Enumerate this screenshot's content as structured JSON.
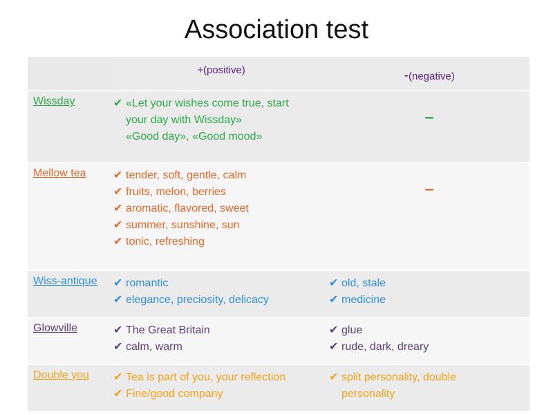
{
  "title": "Association test",
  "header": {
    "positive": "+(positive)",
    "negative_sign": "-",
    "negative_text": "(negative)"
  },
  "check": "✔",
  "rows": [
    {
      "brand": "Wissday",
      "color": "#2ea84a",
      "positive": [
        {
          "text": "«Let your wishes come true, start",
          "check": true
        },
        {
          "text": "your day with Wissday»",
          "check": false
        },
        {
          "text": "«Good day», «Good mood»",
          "check": false
        }
      ],
      "negative_dash": "–"
    },
    {
      "brand": "Mellow tea",
      "color": "#e3692a",
      "positive": [
        {
          "text": "tender, soft, gentle, calm",
          "check": true
        },
        {
          "text": "fruits, melon, berries",
          "check": true
        },
        {
          "text": "aromatic, flavored, sweet",
          "check": true
        },
        {
          "text": "summer, sunshine, sun",
          "check": true
        },
        {
          "text": "tonic, refreshing",
          "check": true
        }
      ],
      "negative_dash": "–"
    },
    {
      "brand": "Wiss-antique",
      "color": "#2f8fd6",
      "positive": [
        {
          "text": "romantic",
          "check": true
        },
        {
          "text": "elegance, preciosity, delicacy",
          "check": true
        }
      ],
      "negative": [
        {
          "text": "old, stale",
          "check": true
        },
        {
          "text": "medicine",
          "check": true
        }
      ]
    },
    {
      "brand": "Glowville",
      "color": "#5d3d7c",
      "positive": [
        {
          "text": "The Great Britain",
          "check": true
        },
        {
          "text": "calm, warm",
          "check": true
        }
      ],
      "negative": [
        {
          "text": "glue",
          "check": true
        },
        {
          "text": "rude, dark, dreary",
          "check": true
        }
      ]
    },
    {
      "brand": "Double you",
      "color": "#f0a31c",
      "positive": [
        {
          "text": "Tea is part of you, your reflection",
          "check": true
        },
        {
          "text": "Fine/good company",
          "check": true
        }
      ],
      "negative": [
        {
          "text": "split personality, double",
          "check": true
        },
        {
          "text": "personality",
          "check": false
        }
      ]
    }
  ]
}
